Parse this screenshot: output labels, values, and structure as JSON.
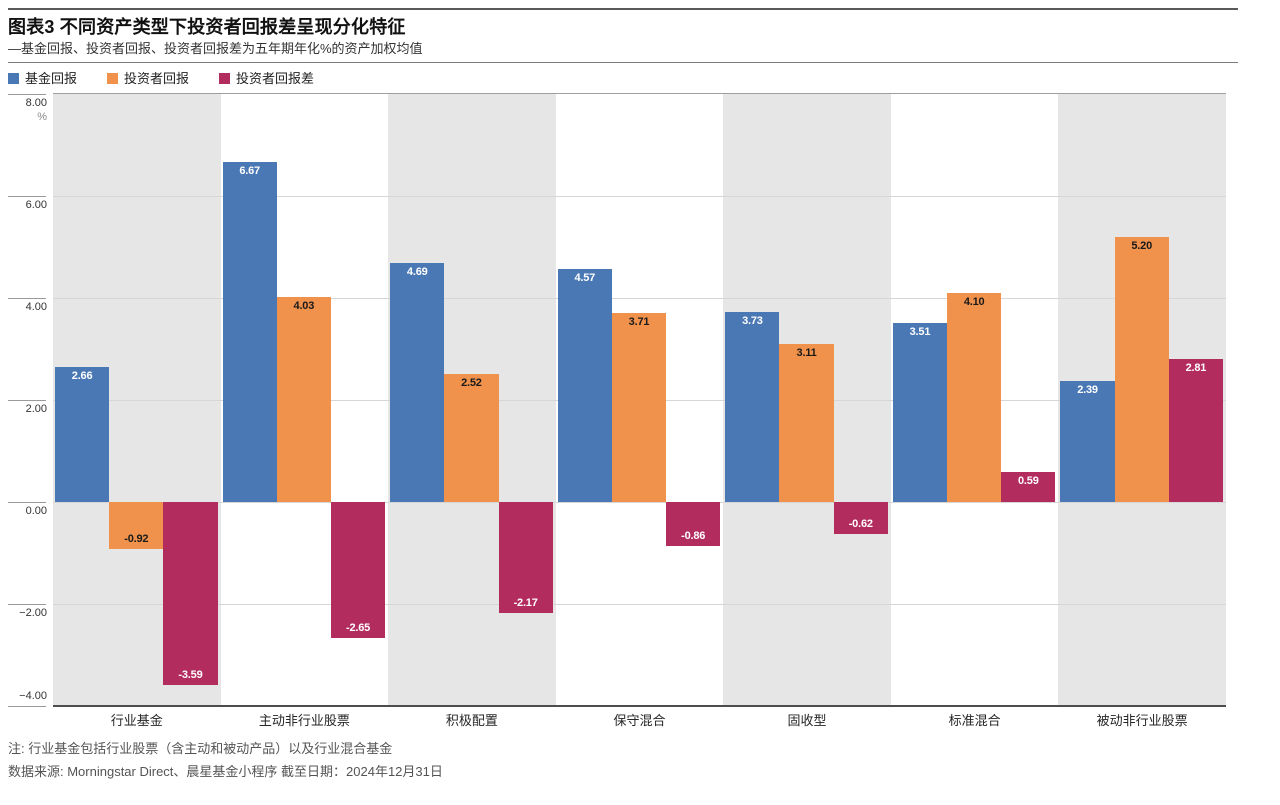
{
  "chart_data": {
    "type": "bar",
    "title": "图表3 不同资产类型下投资者回报差呈现分化特征",
    "subtitle": "—基金回报、投资者回报、投资者回报差为五年期年化%的资产加权均值",
    "categories": [
      "行业基金",
      "主动非行业股票",
      "积极配置",
      "保守混合",
      "固收型",
      "标准混合",
      "被动非行业股票"
    ],
    "series": [
      {
        "name": "基金回报",
        "color": "#4a78b5",
        "label_color": "#ffffff",
        "values": [
          2.66,
          6.67,
          4.69,
          4.57,
          3.73,
          3.51,
          2.39
        ]
      },
      {
        "name": "投资者回报",
        "color": "#f0924c",
        "label_color": "#1a1a1a",
        "values": [
          -0.92,
          4.03,
          2.52,
          3.71,
          3.11,
          4.1,
          5.2
        ]
      },
      {
        "name": "投资者回报差",
        "color": "#b32c5e",
        "label_color": "#ffffff",
        "values": [
          -3.59,
          -2.65,
          -2.17,
          -0.86,
          -0.62,
          0.59,
          2.81
        ]
      }
    ],
    "xlabel": "",
    "ylabel": "%",
    "ylim": [
      -4,
      8
    ],
    "yticks": [
      8,
      6,
      4,
      2,
      0,
      -2,
      -4
    ],
    "grid": "horizontal-on",
    "legend_position": "top-left",
    "plot_background": "alternating vertical category bands #e6e6e7 / #ffffff",
    "value_labels": "inside bar ends, two decimals"
  },
  "footnotes": {
    "note": "注: 行业基金包括行业股票（含主动和被动产品）以及行业混合基金",
    "source": "数据来源: Morningstar Direct、晨星基金小程序 截至日期：2024年12月31日"
  }
}
